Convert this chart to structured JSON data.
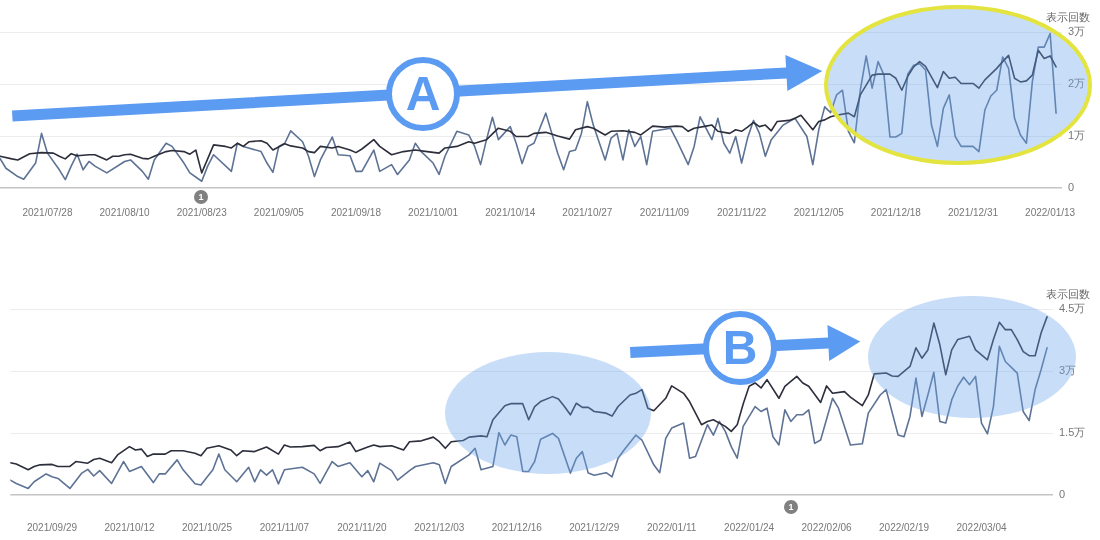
{
  "chart_data": [
    {
      "type": "line",
      "ylabel": "表示回数",
      "xlim": [
        "2021-07-20",
        "2022-01-15"
      ],
      "xticks": [
        {
          "value": "2021-07-28",
          "label": "2021/07/28"
        },
        {
          "value": "2021-08-10",
          "label": "2021/08/10"
        },
        {
          "value": "2021-08-23",
          "label": "2021/08/23"
        },
        {
          "value": "2021-09-05",
          "label": "2021/09/05"
        },
        {
          "value": "2021-09-18",
          "label": "2021/09/18"
        },
        {
          "value": "2021-10-01",
          "label": "2021/10/01"
        },
        {
          "value": "2021-10-14",
          "label": "2021/10/14"
        },
        {
          "value": "2021-10-27",
          "label": "2021/10/27"
        },
        {
          "value": "2021-11-09",
          "label": "2021/11/09"
        },
        {
          "value": "2021-11-22",
          "label": "2021/11/22"
        },
        {
          "value": "2021-12-05",
          "label": "2021/12/05"
        },
        {
          "value": "2021-12-18",
          "label": "2021/12/18"
        },
        {
          "value": "2021-12-31",
          "label": "2021/12/31"
        },
        {
          "value": "2022-01-13",
          "label": "2022/01/13"
        }
      ],
      "ylim": [
        0,
        3
      ],
      "yticks": [
        0,
        {
          "value": 1,
          "label": "1万"
        },
        {
          "value": 2,
          "label": "2万"
        },
        {
          "value": 3,
          "label": "3万"
        }
      ],
      "grid": "y",
      "marker": "none",
      "annotations": [
        "A",
        "1"
      ],
      "series": [
        {
          "color": "#2c2e3b",
          "x": [
            "2021-07-20",
            "2021-07-22",
            "2021-07-23",
            "2021-07-25",
            "2021-07-27",
            "2021-07-29",
            "2021-07-30",
            "2021-07-31",
            "2021-08-01",
            "2021-08-02",
            "2021-08-04",
            "2021-08-05",
            "2021-08-07",
            "2021-08-08",
            "2021-08-09",
            "2021-08-10",
            "2021-08-11",
            "2021-08-13",
            "2021-08-14",
            "2021-08-15",
            "2021-08-17",
            "2021-08-18",
            "2021-08-20",
            "2021-08-21",
            "2021-08-22",
            "2021-08-23",
            "2021-08-25",
            "2021-08-27",
            "2021-08-28",
            "2021-08-29",
            "2021-08-30",
            "2021-08-31",
            "2021-09-02",
            "2021-09-03",
            "2021-09-04",
            "2021-09-06",
            "2021-09-07",
            "2021-09-09",
            "2021-09-10",
            "2021-09-11",
            "2021-09-12",
            "2021-09-14",
            "2021-09-15",
            "2021-09-17",
            "2021-09-18",
            "2021-09-19",
            "2021-09-21",
            "2021-09-22",
            "2021-09-24",
            "2021-09-26",
            "2021-09-28",
            "2021-09-30",
            "2021-10-02",
            "2021-10-03",
            "2021-10-05",
            "2021-10-07",
            "2021-10-08",
            "2021-10-10",
            "2021-10-12",
            "2021-10-14",
            "2021-10-15",
            "2021-10-17",
            "2021-10-18",
            "2021-10-20",
            "2021-10-22",
            "2021-10-24",
            "2021-10-25",
            "2021-10-27",
            "2021-10-28",
            "2021-10-30",
            "2021-10-31",
            "2021-11-02",
            "2021-11-04",
            "2021-11-05",
            "2021-11-07",
            "2021-11-09",
            "2021-11-11",
            "2021-11-12",
            "2021-11-13",
            "2021-11-14",
            "2021-11-16",
            "2021-11-17",
            "2021-11-18",
            "2021-11-20",
            "2021-11-21",
            "2021-11-22",
            "2021-11-23",
            "2021-11-24",
            "2021-11-25",
            "2021-11-26",
            "2021-11-27",
            "2021-11-28",
            "2021-11-30",
            "2021-12-01",
            "2021-12-02",
            "2021-12-03",
            "2021-12-04",
            "2021-12-05",
            "2021-12-06",
            "2021-12-07",
            "2021-12-08",
            "2021-12-10",
            "2021-12-11",
            "2021-12-12",
            "2021-12-13",
            "2021-12-14",
            "2021-12-15",
            "2021-12-17",
            "2021-12-18",
            "2021-12-19",
            "2021-12-20",
            "2021-12-21",
            "2021-12-22",
            "2021-12-23",
            "2021-12-25",
            "2021-12-26",
            "2021-12-27",
            "2021-12-28",
            "2021-12-29",
            "2021-12-31",
            "2022-01-01",
            "2022-01-02",
            "2022-01-04",
            "2022-01-05",
            "2022-01-06",
            "2022-01-07",
            "2022-01-08",
            "2022-01-09",
            "2022-01-10",
            "2022-01-11",
            "2022-01-12",
            "2022-01-13",
            "2022-01-14"
          ],
          "values": [
            0.61,
            0.56,
            0.54,
            0.66,
            0.68,
            0.67,
            0.61,
            0.56,
            0.66,
            0.62,
            0.64,
            0.64,
            0.54,
            0.61,
            0.61,
            0.64,
            0.65,
            0.57,
            0.56,
            0.61,
            0.7,
            0.72,
            0.7,
            0.65,
            0.73,
            0.29,
            0.83,
            0.8,
            0.77,
            0.86,
            0.8,
            0.89,
            0.91,
            0.86,
            0.73,
            0.85,
            0.81,
            0.77,
            0.7,
            0.68,
            0.8,
            0.77,
            0.8,
            0.73,
            0.68,
            0.75,
            0.93,
            0.8,
            0.64,
            0.7,
            0.73,
            0.7,
            0.67,
            0.77,
            0.8,
            0.89,
            0.86,
            0.93,
            1.15,
            1.09,
            0.99,
            0.99,
            1.05,
            1.07,
            1,
            0.94,
            1.12,
            1.18,
            1.15,
            1.02,
            1.09,
            1.1,
            1.07,
            1.02,
            1.19,
            1.17,
            1.19,
            1.18,
            1.09,
            1.15,
            1.19,
            1.21,
            1.09,
            1.05,
            1.12,
            1.09,
            1.17,
            1.26,
            1.18,
            1.21,
            1.1,
            1.28,
            1.3,
            1.34,
            1.4,
            1.26,
            1.12,
            1.28,
            1.31,
            1.37,
            1.4,
            1.44,
            1.37,
            1.79,
            1.98,
            2.17,
            2.19,
            2.19,
            2.11,
            1.88,
            2.15,
            2.33,
            2.43,
            2.34,
            1.93,
            2.24,
            2.11,
            2.13,
            2.01,
            2.01,
            1.92,
            2.08,
            2.3,
            2.43,
            2.55,
            2.11,
            2.04,
            2.06,
            2.17,
            2.65,
            2.49,
            2.54,
            2.33
          ]
        },
        {
          "color": "#5d7294",
          "x": [
            "2021-07-20",
            "2021-07-21",
            "2021-07-23",
            "2021-07-24",
            "2021-07-26",
            "2021-07-27",
            "2021-07-28",
            "2021-07-30",
            "2021-07-31",
            "2021-08-01",
            "2021-08-02",
            "2021-08-03",
            "2021-08-04",
            "2021-08-05",
            "2021-08-07",
            "2021-08-10",
            "2021-08-11",
            "2021-08-13",
            "2021-08-14",
            "2021-08-15",
            "2021-08-17",
            "2021-08-18",
            "2021-08-20",
            "2021-08-21",
            "2021-08-23",
            "2021-08-24",
            "2021-08-25",
            "2021-08-28",
            "2021-08-29",
            "2021-08-30",
            "2021-09-02",
            "2021-09-03",
            "2021-09-04",
            "2021-09-05",
            "2021-09-06",
            "2021-09-07",
            "2021-09-09",
            "2021-09-10",
            "2021-09-11",
            "2021-09-12",
            "2021-09-14",
            "2021-09-15",
            "2021-09-17",
            "2021-09-18",
            "2021-09-19",
            "2021-09-21",
            "2021-09-22",
            "2021-09-24",
            "2021-09-25",
            "2021-09-27",
            "2021-09-28",
            "2021-09-29",
            "2021-10-01",
            "2021-10-02",
            "2021-10-03",
            "2021-10-05",
            "2021-10-07",
            "2021-10-08",
            "2021-10-09",
            "2021-10-10",
            "2021-10-11",
            "2021-10-12",
            "2021-10-14",
            "2021-10-15",
            "2021-10-16",
            "2021-10-17",
            "2021-10-18",
            "2021-10-20",
            "2021-10-22",
            "2021-10-23",
            "2021-10-24",
            "2021-10-25",
            "2021-10-26",
            "2021-10-27",
            "2021-10-28",
            "2021-10-30",
            "2021-10-31",
            "2021-11-01",
            "2021-11-02",
            "2021-11-03",
            "2021-11-04",
            "2021-11-05",
            "2021-11-06",
            "2021-11-07",
            "2021-11-10",
            "2021-11-11",
            "2021-11-13",
            "2021-11-14",
            "2021-11-15",
            "2021-11-17",
            "2021-11-18",
            "2021-11-19",
            "2021-11-20",
            "2021-11-21",
            "2021-11-22",
            "2021-11-23",
            "2021-11-24",
            "2021-11-25",
            "2021-11-26",
            "2021-11-27",
            "2021-11-29",
            "2021-12-01",
            "2021-12-03",
            "2021-12-04",
            "2021-12-05",
            "2021-12-06",
            "2021-12-07",
            "2021-12-08",
            "2021-12-09",
            "2021-12-10",
            "2021-12-11",
            "2021-12-12",
            "2021-12-13",
            "2021-12-14",
            "2021-12-15",
            "2021-12-16",
            "2021-12-17",
            "2021-12-18",
            "2021-12-19",
            "2021-12-20",
            "2021-12-21",
            "2021-12-22",
            "2021-12-23",
            "2021-12-24",
            "2021-12-25",
            "2021-12-26",
            "2021-12-27",
            "2021-12-28",
            "2021-12-29",
            "2021-12-31",
            "2022-01-01",
            "2022-01-02",
            "2022-01-03",
            "2022-01-04",
            "2022-01-05",
            "2022-01-06",
            "2022-01-07",
            "2022-01-08",
            "2022-01-09",
            "2022-01-10",
            "2022-01-11",
            "2022-01-12",
            "2022-01-13",
            "2022-01-14"
          ],
          "values": [
            0.57,
            0.38,
            0.22,
            0.17,
            0.48,
            1.05,
            0.67,
            0.35,
            0.16,
            0.42,
            0.65,
            0.35,
            0.51,
            0.42,
            0.29,
            0.51,
            0.54,
            0.32,
            0.17,
            0.54,
            0.86,
            0.8,
            0.48,
            0.29,
            0.13,
            0.42,
            0.64,
            0.32,
            0.86,
            0.8,
            0.7,
            0.48,
            0.3,
            0.8,
            0.86,
            1.1,
            0.89,
            0.61,
            0.22,
            0.54,
            0.98,
            0.64,
            0.62,
            0.32,
            0.32,
            0.73,
            0.32,
            0.45,
            0.26,
            0.54,
            0.86,
            0.7,
            0.48,
            0.26,
            0.61,
            1.09,
            1.02,
            0.8,
            0.45,
            0.93,
            1.36,
            0.93,
            1.18,
            0.86,
            0.47,
            0.8,
            0.86,
            1.44,
            0.67,
            0.35,
            0.7,
            0.73,
            1.05,
            1.66,
            1.21,
            0.54,
            0.96,
            1.05,
            0.54,
            1.12,
            0.8,
            0.99,
            0.45,
            1.09,
            1.15,
            0.93,
            0.45,
            0.8,
            1.37,
            0.93,
            1.34,
            0.86,
            0.67,
            0.99,
            0.48,
            0.96,
            1.3,
            1.05,
            0.61,
            0.93,
            1.21,
            1.34,
            0.99,
            0.45,
            1.12,
            1.56,
            1.45,
            1.79,
            1.88,
            1.09,
            0.87,
            1.88,
            2.54,
            1.92,
            2.43,
            2.17,
            0.98,
            0.98,
            1.05,
            2.19,
            2.36,
            2.39,
            2.27,
            1.21,
            0.8,
            1.53,
            1.79,
            0.99,
            0.8,
            0.8,
            0.7,
            1.5,
            1.77,
            1.88,
            2.52,
            2.3,
            1.34,
            1.02,
            0.86,
            2.04,
            2.71,
            2.71,
            2.97,
            1.44
          ]
        }
      ]
    },
    {
      "type": "line",
      "ylabel": "表示回数",
      "xlim": [
        "2021-09-22",
        "2022-03-16"
      ],
      "xticks": [
        {
          "value": "2021-09-29",
          "label": "2021/09/29"
        },
        {
          "value": "2021-10-12",
          "label": "2021/10/12"
        },
        {
          "value": "2021-10-25",
          "label": "2021/10/25"
        },
        {
          "value": "2021-11-07",
          "label": "2021/11/07"
        },
        {
          "value": "2021-11-20",
          "label": "2021/11/20"
        },
        {
          "value": "2021-12-03",
          "label": "2021/12/03"
        },
        {
          "value": "2021-12-16",
          "label": "2021/12/16"
        },
        {
          "value": "2021-12-29",
          "label": "2021/12/29"
        },
        {
          "value": "2022-01-11",
          "label": "2022/01/11"
        },
        {
          "value": "2022-01-24",
          "label": "2022/01/24"
        },
        {
          "value": "2022-02-06",
          "label": "2022/02/06"
        },
        {
          "value": "2022-02-19",
          "label": "2022/02/19"
        },
        {
          "value": "2022-03-04",
          "label": "2022/03/04"
        }
      ],
      "ylim": [
        0,
        4.5
      ],
      "yticks": [
        0,
        {
          "value": 1.5,
          "label": "1.5万"
        },
        {
          "value": 3,
          "label": "3万"
        },
        {
          "value": 4.5,
          "label": "4.5万"
        }
      ],
      "grid": "y",
      "marker": "none",
      "annotations": [
        "B",
        "1"
      ],
      "series": [
        {
          "color": "#2c2e3b",
          "x": [
            "2021-09-22",
            "2021-09-23",
            "2021-09-25",
            "2021-09-26",
            "2021-09-27",
            "2021-09-29",
            "2021-09-30",
            "2021-10-02",
            "2021-10-03",
            "2021-10-05",
            "2021-10-06",
            "2021-10-07",
            "2021-10-09",
            "2021-10-10",
            "2021-10-12",
            "2021-10-13",
            "2021-10-14",
            "2021-10-15",
            "2021-10-16",
            "2021-10-18",
            "2021-10-19",
            "2021-10-21",
            "2021-10-23",
            "2021-10-24",
            "2021-10-25",
            "2021-10-27",
            "2021-10-29",
            "2021-10-30",
            "2021-10-31",
            "2021-11-02",
            "2021-11-04",
            "2021-11-06",
            "2021-11-07",
            "2021-11-08",
            "2021-11-10",
            "2021-11-12",
            "2021-11-13",
            "2021-11-14",
            "2021-11-16",
            "2021-11-18",
            "2021-11-19",
            "2021-11-21",
            "2021-11-22",
            "2021-11-23",
            "2021-11-25",
            "2021-11-27",
            "2021-11-28",
            "2021-11-30",
            "2021-12-02",
            "2021-12-03",
            "2021-12-04",
            "2021-12-05",
            "2021-12-07",
            "2021-12-08",
            "2021-12-10",
            "2021-12-11",
            "2021-12-12",
            "2021-12-14",
            "2021-12-15",
            "2021-12-17",
            "2021-12-18",
            "2021-12-19",
            "2021-12-20",
            "2021-12-22",
            "2021-12-23",
            "2021-12-24",
            "2021-12-25",
            "2021-12-26",
            "2021-12-27",
            "2021-12-28",
            "2021-12-29",
            "2021-12-31",
            "2022-01-01",
            "2022-01-02",
            "2022-01-04",
            "2022-01-05",
            "2022-01-06",
            "2022-01-07",
            "2022-01-08",
            "2022-01-10",
            "2022-01-11",
            "2022-01-12",
            "2022-01-13",
            "2022-01-14",
            "2022-01-15",
            "2022-01-16",
            "2022-01-17",
            "2022-01-18",
            "2022-01-19",
            "2022-01-20",
            "2022-01-21",
            "2022-01-22",
            "2022-01-23",
            "2022-01-24",
            "2022-01-25",
            "2022-01-26",
            "2022-01-27",
            "2022-01-29",
            "2022-01-30",
            "2022-02-01",
            "2022-02-02",
            "2022-02-03",
            "2022-02-05",
            "2022-02-06",
            "2022-02-07",
            "2022-02-09",
            "2022-02-10",
            "2022-02-12",
            "2022-02-13",
            "2022-02-14",
            "2022-02-16",
            "2022-02-17",
            "2022-02-18",
            "2022-02-20",
            "2022-02-21",
            "2022-02-22",
            "2022-02-23",
            "2022-02-24",
            "2022-02-25",
            "2022-02-26",
            "2022-02-27",
            "2022-02-28",
            "2022-03-02",
            "2022-03-03",
            "2022-03-05",
            "2022-03-06",
            "2022-03-07",
            "2022-03-08",
            "2022-03-09",
            "2022-03-10",
            "2022-03-11",
            "2022-03-12",
            "2022-03-13",
            "2022-03-14",
            "2022-03-15"
          ],
          "values": [
            0.78,
            0.75,
            0.61,
            0.69,
            0.73,
            0.74,
            0.69,
            0.69,
            0.81,
            0.77,
            0.86,
            0.89,
            0.78,
            0.97,
            1.17,
            1.09,
            1.11,
            0.93,
            0.99,
            0.99,
            1.07,
            1.07,
            1.01,
            0.95,
            1.13,
            1.19,
            1.09,
            0.95,
            1.07,
            1.05,
            1.16,
            0.99,
            1.21,
            1.16,
            1.17,
            1.2,
            1.07,
            1.15,
            1.17,
            1.28,
            1.05,
            1.16,
            1.21,
            1.17,
            1.19,
            1.09,
            1.29,
            1.31,
            1.4,
            1.29,
            1.13,
            1.29,
            1.32,
            1.4,
            1.43,
            1.41,
            1.82,
            2.16,
            2.21,
            2.21,
            1.82,
            2.14,
            2.26,
            2.38,
            2.32,
            2.14,
            1.94,
            2.22,
            2.12,
            2.12,
            2.02,
            1.98,
            1.91,
            2.14,
            2.42,
            2.46,
            2.55,
            2.1,
            2.04,
            2.34,
            2.64,
            2.55,
            2.46,
            2.26,
            1.98,
            1.7,
            1.78,
            1.82,
            1.74,
            1.66,
            1.54,
            1.7,
            2.2,
            2.63,
            2.71,
            2.59,
            2.79,
            2.34,
            2.63,
            2.87,
            2.71,
            2.63,
            2.24,
            2.64,
            2.46,
            2.5,
            2.37,
            2.16,
            2.42,
            2.93,
            2.95,
            2.88,
            2.87,
            3.11,
            3.56,
            3.31,
            3.51,
            4.16,
            3.64,
            2.91,
            3.51,
            3.76,
            3.84,
            3.51,
            3.27,
            3.76,
            4.18,
            4,
            4,
            3.76,
            3.47,
            3.37,
            3.37,
            3.92,
            4.31
          ]
        },
        {
          "color": "#5d7294",
          "x": [
            "2021-09-22",
            "2021-09-23",
            "2021-09-25",
            "2021-09-26",
            "2021-09-28",
            "2021-09-29",
            "2021-09-30",
            "2021-10-02",
            "2021-10-04",
            "2021-10-05",
            "2021-10-06",
            "2021-10-07",
            "2021-10-09",
            "2021-10-11",
            "2021-10-12",
            "2021-10-14",
            "2021-10-16",
            "2021-10-17",
            "2021-10-18",
            "2021-10-20",
            "2021-10-21",
            "2021-10-23",
            "2021-10-24",
            "2021-10-25",
            "2021-10-26",
            "2021-10-27",
            "2021-10-28",
            "2021-10-30",
            "2021-11-01",
            "2021-11-02",
            "2021-11-03",
            "2021-11-04",
            "2021-11-05",
            "2021-11-06",
            "2021-11-07",
            "2021-11-10",
            "2021-11-12",
            "2021-11-13",
            "2021-11-15",
            "2021-11-16",
            "2021-11-18",
            "2021-11-20",
            "2021-11-21",
            "2021-11-22",
            "2021-11-23",
            "2021-11-25",
            "2021-11-26",
            "2021-11-28",
            "2021-11-29",
            "2021-12-02",
            "2021-12-03",
            "2021-12-04",
            "2021-12-05",
            "2021-12-08",
            "2021-12-09",
            "2021-12-10",
            "2021-12-12",
            "2021-12-13",
            "2021-12-14",
            "2021-12-15",
            "2021-12-16",
            "2021-12-17",
            "2021-12-18",
            "2021-12-19",
            "2021-12-20",
            "2021-12-22",
            "2021-12-23",
            "2021-12-25",
            "2021-12-26",
            "2021-12-27",
            "2021-12-28",
            "2021-12-29",
            "2021-12-31",
            "2022-01-01",
            "2022-01-02",
            "2022-01-03",
            "2022-01-05",
            "2022-01-06",
            "2022-01-08",
            "2022-01-09",
            "2022-01-10",
            "2022-01-11",
            "2022-01-13",
            "2022-01-14",
            "2022-01-15",
            "2022-01-17",
            "2022-01-18",
            "2022-01-19",
            "2022-01-20",
            "2022-01-21",
            "2022-01-22",
            "2022-01-23",
            "2022-01-25",
            "2022-01-26",
            "2022-01-27",
            "2022-01-28",
            "2022-01-29",
            "2022-01-30",
            "2022-01-31",
            "2022-02-01",
            "2022-02-02",
            "2022-02-03",
            "2022-02-04",
            "2022-02-05",
            "2022-02-07",
            "2022-02-08",
            "2022-02-09",
            "2022-02-10",
            "2022-02-12",
            "2022-02-13",
            "2022-02-15",
            "2022-02-16",
            "2022-02-18",
            "2022-02-19",
            "2022-02-20",
            "2022-02-21",
            "2022-02-22",
            "2022-02-23",
            "2022-02-24",
            "2022-02-25",
            "2022-02-26",
            "2022-02-27",
            "2022-02-28",
            "2022-03-01",
            "2022-03-02",
            "2022-03-03",
            "2022-03-04",
            "2022-03-05",
            "2022-03-06",
            "2022-03-07",
            "2022-03-08",
            "2022-03-10",
            "2022-03-11",
            "2022-03-12",
            "2022-03-13",
            "2022-03-14",
            "2022-03-15"
          ],
          "values": [
            0.36,
            0.28,
            0.16,
            0.32,
            0.51,
            0.44,
            0.4,
            0.16,
            0.53,
            0.62,
            0.46,
            0.59,
            0.28,
            0.81,
            0.57,
            0.69,
            0.3,
            0.51,
            0.51,
            0.85,
            0.61,
            0.27,
            0.24,
            0.43,
            0.61,
            0.99,
            0.61,
            0.32,
            0.67,
            0.32,
            0.61,
            0.48,
            0.61,
            0.27,
            0.61,
            0.67,
            0.51,
            0.28,
            0.81,
            0.69,
            0.78,
            0.44,
            0.59,
            0.32,
            0.77,
            0.59,
            0.36,
            0.59,
            0.69,
            0.78,
            0.73,
            0.28,
            0.69,
            0.97,
            1.13,
            0.61,
            0.69,
            1.51,
            1.21,
            1.45,
            1.41,
            0.57,
            0.57,
            0.81,
            1.35,
            1.49,
            1.37,
            0.53,
            0.89,
            1.05,
            0.53,
            0.48,
            0.54,
            0.44,
            0.89,
            1.09,
            1.45,
            1.33,
            0.73,
            0.54,
            1.37,
            1.62,
            1.74,
            0.89,
            0.93,
            1.7,
            1.45,
            1.78,
            1.54,
            1.17,
            0.89,
            1.66,
            2.14,
            2.02,
            2.1,
            1.41,
            1.21,
            2.06,
            1.78,
            1.94,
            1.94,
            2.06,
            1.25,
            1.33,
            2.34,
            2.1,
            1.66,
            1.21,
            1.24,
            1.98,
            2.42,
            2.55,
            1.45,
            1.41,
            1.9,
            2.83,
            1.9,
            2.42,
            2.97,
            1.78,
            1.74,
            2.3,
            2.63,
            2.85,
            2.67,
            2.87,
            1.74,
            1.48,
            2.14,
            3.6,
            3.23,
            2.95,
            2.02,
            1.8,
            2.55,
            3.03,
            3.56
          ]
        }
      ]
    }
  ]
}
